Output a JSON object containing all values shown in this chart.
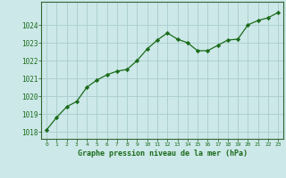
{
  "x": [
    0,
    1,
    2,
    3,
    4,
    5,
    6,
    7,
    8,
    9,
    10,
    11,
    12,
    13,
    14,
    15,
    16,
    17,
    18,
    19,
    20,
    21,
    22,
    23
  ],
  "y": [
    1018.1,
    1018.8,
    1019.4,
    1019.7,
    1020.5,
    1020.9,
    1021.2,
    1021.4,
    1021.5,
    1022.0,
    1022.65,
    1023.15,
    1023.55,
    1023.2,
    1023.0,
    1022.55,
    1022.55,
    1022.85,
    1023.15,
    1023.2,
    1024.0,
    1024.25,
    1024.4,
    1024.7
  ],
  "line_color": "#1a6b1a",
  "marker_color": "#1a6b1a",
  "bg_color": "#cce8e8",
  "grid_color": "#aacccc",
  "xlabel": "Graphe pression niveau de la mer (hPa)",
  "xlabel_color": "#1a6b1a",
  "ylabel_ticks": [
    1018,
    1019,
    1020,
    1021,
    1022,
    1023,
    1024
  ],
  "xlim": [
    -0.5,
    23.5
  ],
  "ylim": [
    1017.6,
    1025.3
  ],
  "tick_label_color": "#1a6b1a",
  "border_color": "#336633",
  "bottom_border_color": "#336633"
}
